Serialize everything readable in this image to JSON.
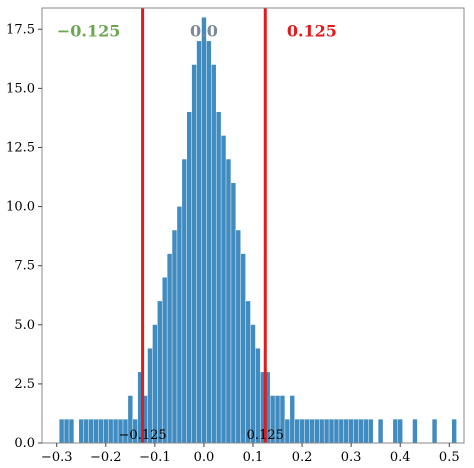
{
  "chart_data": {
    "type": "bar",
    "xlim": [
      -0.33,
      0.53
    ],
    "ylim": [
      0,
      18.4
    ],
    "x_ticks": [
      -0.3,
      -0.2,
      -0.1,
      0.0,
      0.1,
      0.2,
      0.3,
      0.4,
      0.5
    ],
    "x_tick_labels": [
      "−0.3",
      "−0.2",
      "−0.1",
      "0.0",
      "0.1",
      "0.2",
      "0.3",
      "0.4",
      "0.5"
    ],
    "y_ticks": [
      0,
      2.5,
      5,
      7.5,
      10,
      12.5,
      15,
      17.5
    ],
    "y_tick_labels": [
      "0.0",
      "2.5",
      "5.0",
      "7.5",
      "10.0",
      "12.5",
      "15.0",
      "17.5"
    ],
    "grid": false,
    "bar_color": "#1f77b4",
    "bins": [
      {
        "x": -0.29,
        "y": 1
      },
      {
        "x": -0.28,
        "y": 1
      },
      {
        "x": -0.27,
        "y": 1
      },
      {
        "x": -0.26,
        "y": 0
      },
      {
        "x": -0.25,
        "y": 1
      },
      {
        "x": -0.24,
        "y": 1
      },
      {
        "x": -0.23,
        "y": 1
      },
      {
        "x": -0.22,
        "y": 1
      },
      {
        "x": -0.21,
        "y": 1
      },
      {
        "x": -0.2,
        "y": 1
      },
      {
        "x": -0.19,
        "y": 1
      },
      {
        "x": -0.18,
        "y": 1
      },
      {
        "x": -0.17,
        "y": 1
      },
      {
        "x": -0.16,
        "y": 1
      },
      {
        "x": -0.15,
        "y": 2
      },
      {
        "x": -0.14,
        "y": 1
      },
      {
        "x": -0.13,
        "y": 3
      },
      {
        "x": -0.12,
        "y": 2
      },
      {
        "x": -0.11,
        "y": 4
      },
      {
        "x": -0.1,
        "y": 5
      },
      {
        "x": -0.09,
        "y": 6
      },
      {
        "x": -0.08,
        "y": 7
      },
      {
        "x": -0.07,
        "y": 8
      },
      {
        "x": -0.06,
        "y": 9
      },
      {
        "x": -0.05,
        "y": 10
      },
      {
        "x": -0.04,
        "y": 12
      },
      {
        "x": -0.03,
        "y": 14
      },
      {
        "x": -0.02,
        "y": 16
      },
      {
        "x": -0.01,
        "y": 17
      },
      {
        "x": 0.0,
        "y": 18
      },
      {
        "x": 0.01,
        "y": 17
      },
      {
        "x": 0.02,
        "y": 16
      },
      {
        "x": 0.03,
        "y": 14
      },
      {
        "x": 0.04,
        "y": 13
      },
      {
        "x": 0.05,
        "y": 12
      },
      {
        "x": 0.06,
        "y": 11
      },
      {
        "x": 0.07,
        "y": 9
      },
      {
        "x": 0.08,
        "y": 8
      },
      {
        "x": 0.09,
        "y": 6
      },
      {
        "x": 0.1,
        "y": 5
      },
      {
        "x": 0.11,
        "y": 4
      },
      {
        "x": 0.12,
        "y": 3
      },
      {
        "x": 0.13,
        "y": 3
      },
      {
        "x": 0.14,
        "y": 2
      },
      {
        "x": 0.15,
        "y": 2
      },
      {
        "x": 0.16,
        "y": 2
      },
      {
        "x": 0.17,
        "y": 1
      },
      {
        "x": 0.18,
        "y": 2
      },
      {
        "x": 0.19,
        "y": 1
      },
      {
        "x": 0.2,
        "y": 1
      },
      {
        "x": 0.21,
        "y": 1
      },
      {
        "x": 0.22,
        "y": 1
      },
      {
        "x": 0.23,
        "y": 1
      },
      {
        "x": 0.24,
        "y": 1
      },
      {
        "x": 0.25,
        "y": 1
      },
      {
        "x": 0.26,
        "y": 1
      },
      {
        "x": 0.27,
        "y": 1
      },
      {
        "x": 0.28,
        "y": 1
      },
      {
        "x": 0.29,
        "y": 1
      },
      {
        "x": 0.3,
        "y": 1
      },
      {
        "x": 0.31,
        "y": 1
      },
      {
        "x": 0.32,
        "y": 1
      },
      {
        "x": 0.33,
        "y": 1
      },
      {
        "x": 0.34,
        "y": 1
      },
      {
        "x": 0.36,
        "y": 1
      },
      {
        "x": 0.39,
        "y": 1
      },
      {
        "x": 0.4,
        "y": 1
      },
      {
        "x": 0.43,
        "y": 1
      },
      {
        "x": 0.47,
        "y": 1
      },
      {
        "x": 0.51,
        "y": 1
      }
    ],
    "vertical_lines": [
      {
        "x": -0.125,
        "color": "#e31a1c",
        "label": "−0.125"
      },
      {
        "x": 0.125,
        "color": "#e31a1c",
        "label": "0.125"
      }
    ],
    "annotations": [
      {
        "text": "−0.125",
        "x": -0.235,
        "y": 17.2,
        "color": "#6aa84f"
      },
      {
        "text": "0.0",
        "x": 0.0,
        "y": 17.2,
        "color": "#7a8a9a"
      },
      {
        "text": "0.125",
        "x": 0.22,
        "y": 17.2,
        "color": "#e31a1c"
      }
    ]
  }
}
